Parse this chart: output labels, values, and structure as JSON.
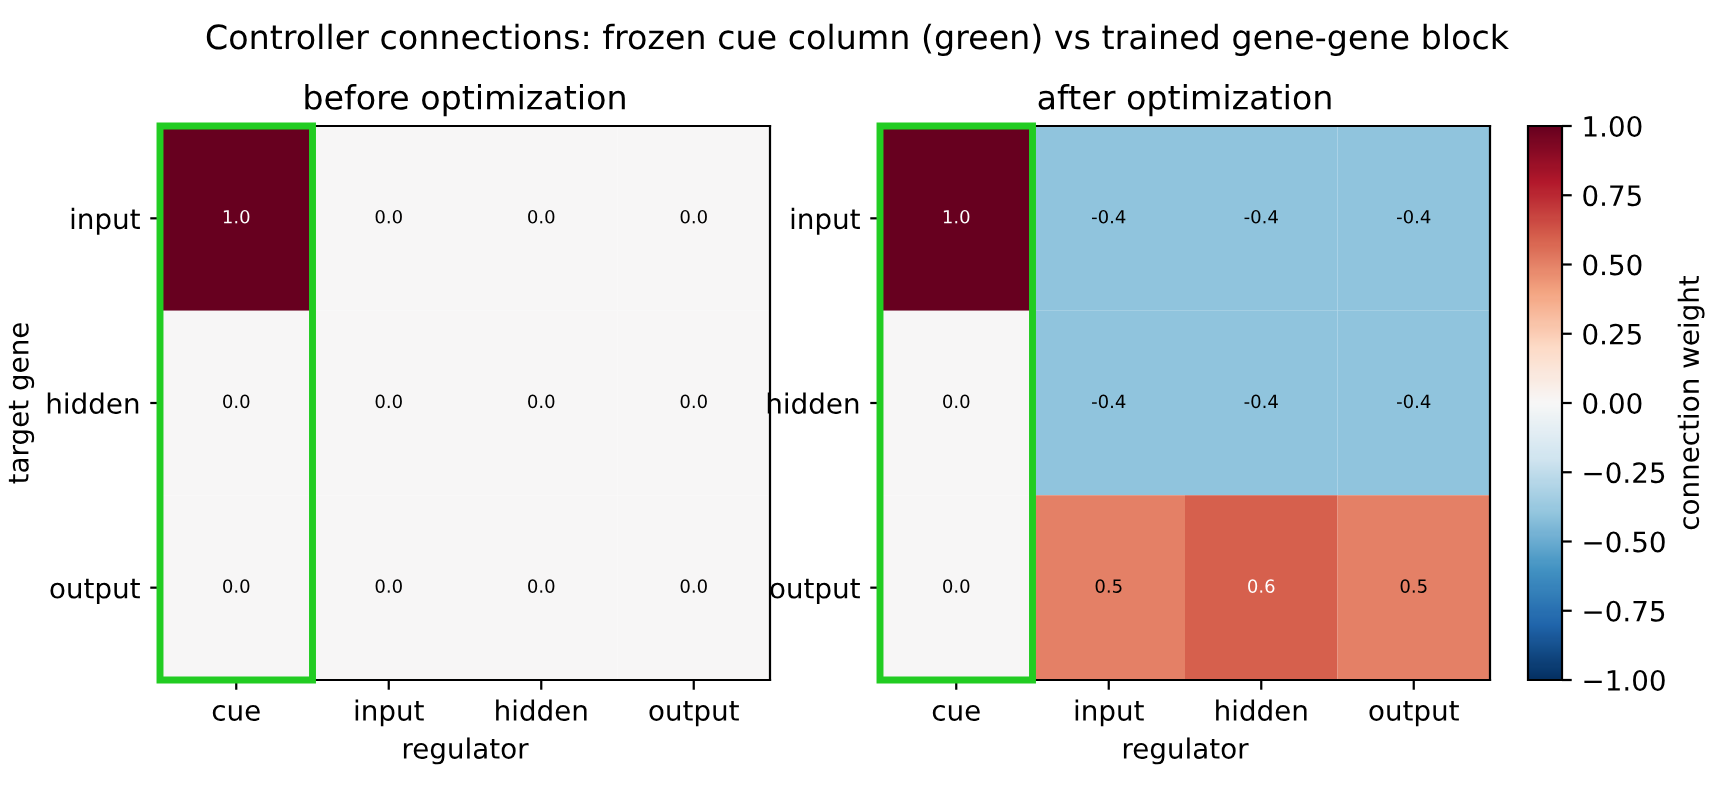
{
  "chart_data": [
    {
      "type": "heatmap",
      "title": "before optimization",
      "xlabel": "regulator",
      "ylabel": "target gene",
      "annotations": [
        "Controller connections: frozen cue column (green) vs trained gene-gene block"
      ],
      "categories": [
        "cue",
        "input",
        "hidden",
        "output"
      ],
      "y_categories": [
        "input",
        "hidden",
        "output"
      ],
      "cells": [
        [
          1.0,
          0.0,
          0.0,
          0.0
        ],
        [
          0.0,
          0.0,
          0.0,
          0.0
        ],
        [
          0.0,
          0.0,
          0.0,
          0.0
        ]
      ],
      "cell_labels": [
        [
          "1.0",
          "0.0",
          "0.0",
          "0.0"
        ],
        [
          "0.0",
          "0.0",
          "0.0",
          "0.0"
        ],
        [
          "0.0",
          "0.0",
          "0.0",
          "0.0"
        ]
      ]
    },
    {
      "type": "heatmap",
      "title": "after optimization",
      "xlabel": "regulator",
      "clabel": "connection weight",
      "categories": [
        "cue",
        "input",
        "hidden",
        "output"
      ],
      "y_categories": [
        "input",
        "hidden",
        "output"
      ],
      "cells": [
        [
          1.0,
          -0.4,
          -0.4,
          -0.4
        ],
        [
          0.0,
          -0.4,
          -0.4,
          -0.4
        ],
        [
          0.0,
          0.5,
          0.6,
          0.5
        ]
      ],
      "cell_labels": [
        [
          "1.0",
          "-0.4",
          "-0.4",
          "-0.4"
        ],
        [
          "0.0",
          "-0.4",
          "-0.4",
          "-0.4"
        ],
        [
          "0.0",
          "0.5",
          "0.6",
          "0.5"
        ]
      ],
      "clim": [
        -1.0,
        1.0
      ],
      "cticks": [
        {
          "value": -1.0,
          "label": "−1.00"
        },
        {
          "value": -0.75,
          "label": "−0.75"
        },
        {
          "value": -0.5,
          "label": "−0.50"
        },
        {
          "value": -0.25,
          "label": "−0.25"
        },
        {
          "value": 0.0,
          "label": "0.00"
        },
        {
          "value": 0.25,
          "label": "0.25"
        },
        {
          "value": 0.5,
          "label": "0.50"
        },
        {
          "value": 0.75,
          "label": "0.75"
        },
        {
          "value": 1.0,
          "label": "1.00"
        }
      ]
    }
  ]
}
